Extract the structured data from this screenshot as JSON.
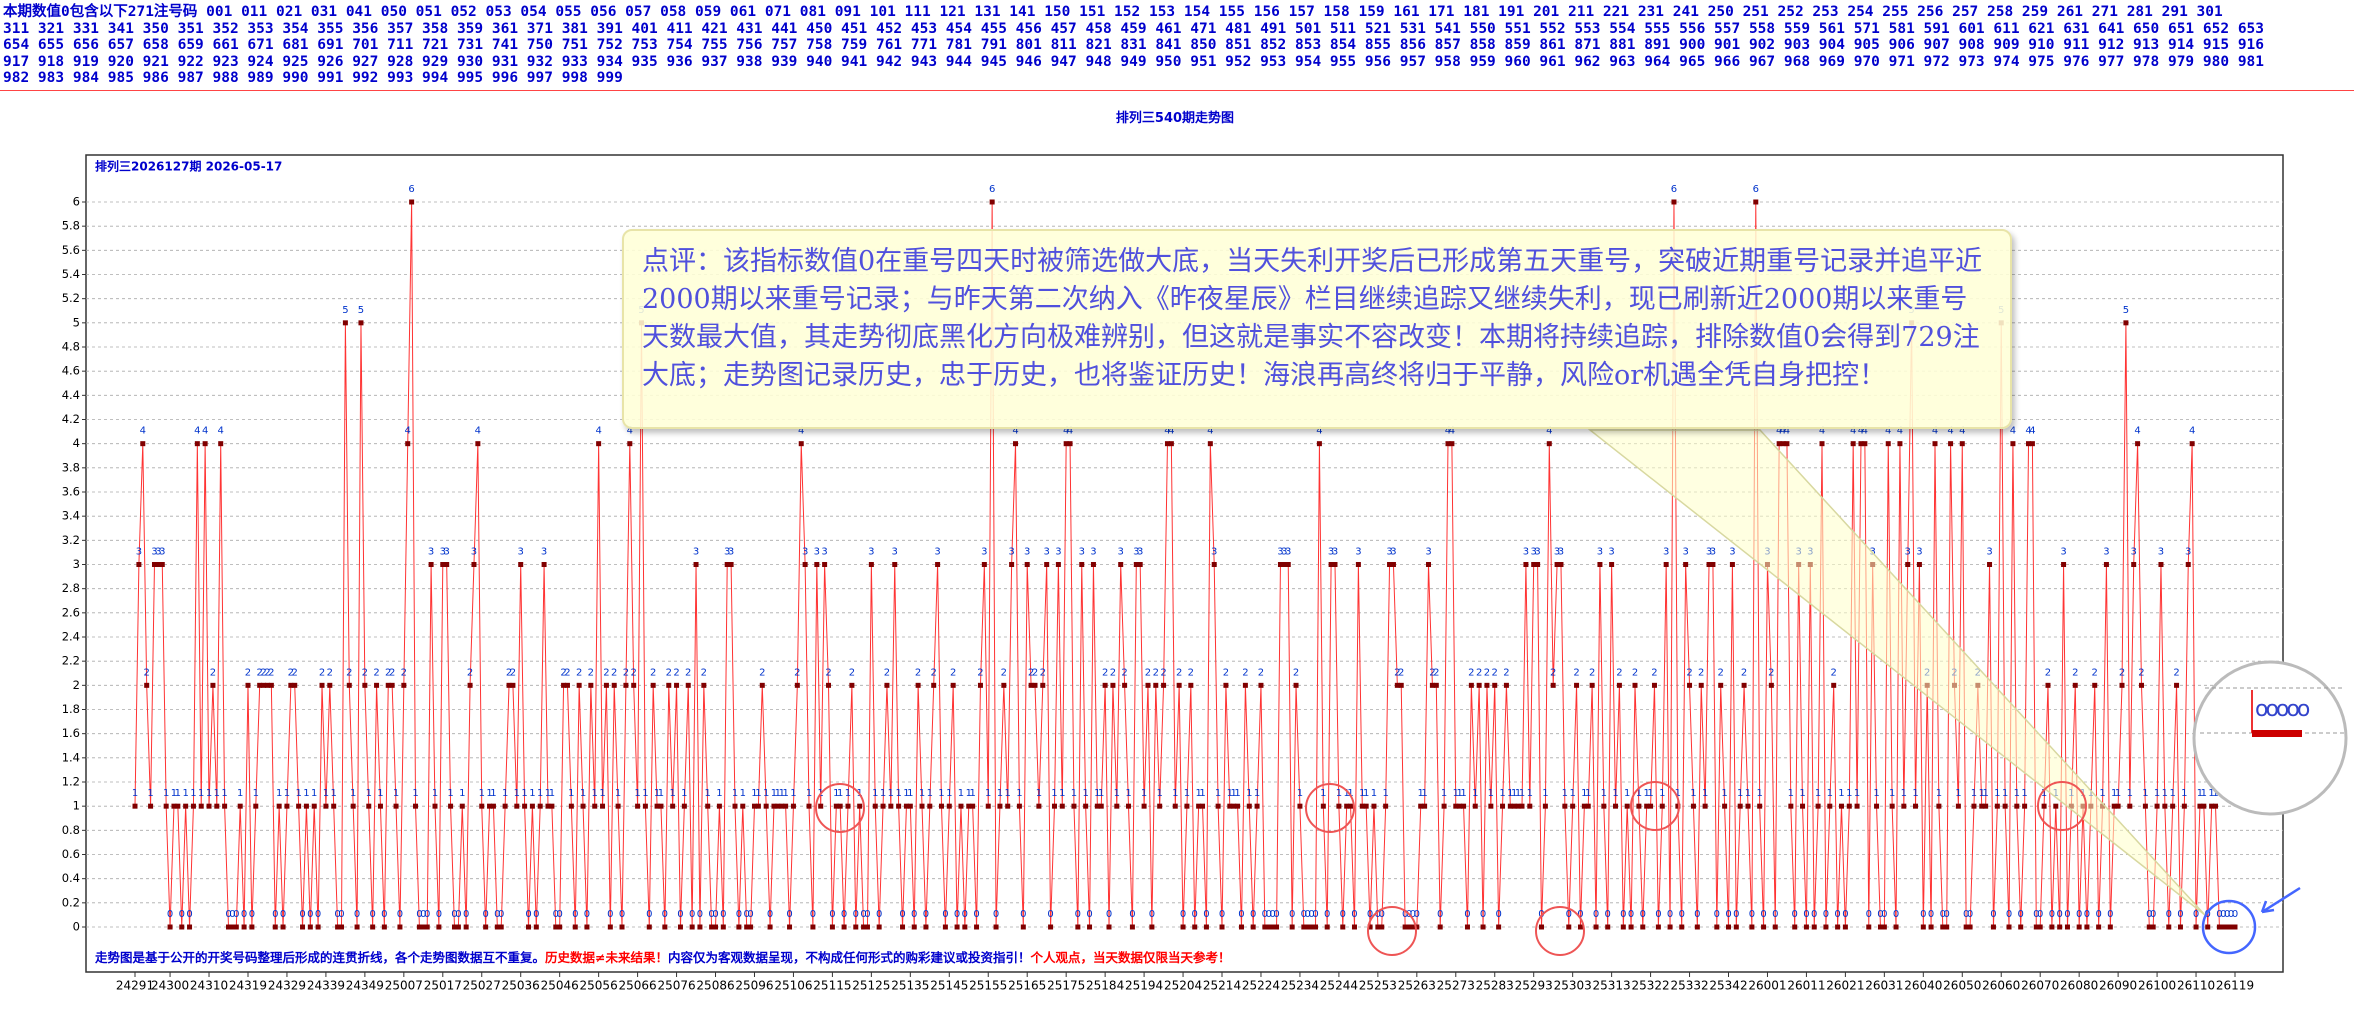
{
  "header": {
    "lines": [
      "本期数值0包含以下271注号码 001 011 021 031 041 050 051 052 053 054 055 056 057 058 059 061 071 081 091 101 111 121 131 141 150 151 152 153 154 155 156 157 158 159 161 171 181 191 201 211 221 231 241 250 251 252 253 254 255 256 257 258 259 261 271 281 291 301",
      "311 321 331 341 350 351 352 353 354 355 356 357 358 359 361 371 381 391 401 411 421 431 441 450 451 452 453 454 455 456 457 458 459 461 471 481 491 501 511 521 531 541 550 551 552 553 554 555 556 557 558 559 561 571 581 591 601 611 621 631 641 650 651 652 653",
      "654 655 656 657 658 659 661 671 681 691 701 711 721 731 741 750 751 752 753 754 755 756 757 758 759 761 771 781 791 801 811 821 831 841 850 851 852 853 854 855 856 857 858 859 861 871 881 891 900 901 902 903 904 905 906 907 908 909 910 911 912 913 914 915 916",
      "917 918 919 920 921 922 923 924 925 926 927 928 929 930 931 932 933 934 935 936 937 938 939 940 941 942 943 944 945 946 947 948 949 950 951 952 953 954 955 956 957 958 959 960 961 962 963 964 965 966 967 968 969 970 971 972 973 974 975 976 977 978 979 980 981",
      "982 983 984 985 986 987 988 989 990 991 992 993 994 995 996 997 998 999"
    ]
  },
  "chart_data": {
    "type": "line",
    "title": "排列三540期走势图",
    "subtitle": "排列三2026127期  2026-05-17",
    "annotation": "点评：该指标数值0在重号四天时被筛选做大底，当天失利开奖后已形成第五天重号，突破近期重号记录并追平近2000期以来重号记录；与昨天第二次纳入《昨夜星辰》栏目继续追踪又继续失利，现已刷新近2000期以来重号天数最大值，其走势彻底黑化方向极难辨别，但这就是事实不容改变！本期将持续追踪，排除数值0会得到729注大底；走势图记录历史，忠于历史，也将鉴证历史！海浪再高终将归于平静，风险or机遇全凭自身把控！",
    "notes": [
      {
        "text": "走势图是基于公开的开奖号码整理后形成的连贯折线，各个走势图数据互不重复。",
        "color": "#0000cc"
      },
      {
        "text": "历史数据≠未来结果！",
        "color": "#ff0000"
      },
      {
        "text": "内容仅为客观数据呈现，不构成任何形式的购彩建议或投资指引！",
        "color": "#0000cc"
      },
      {
        "text": "个人观点，当天数据仅限当天参考！",
        "color": "#ff0000"
      }
    ],
    "ylim": [
      0,
      6
    ],
    "yticks": [
      0,
      0.2,
      0.4,
      0.6,
      0.8,
      1,
      1.2,
      1.4,
      1.6,
      1.8,
      2,
      2.2,
      2.4,
      2.6,
      2.8,
      3,
      3.2,
      3.4,
      3.6,
      3.8,
      4,
      4.2,
      4.4,
      4.6,
      4.8,
      5,
      5.2,
      5.4,
      5.6,
      5.8,
      6
    ],
    "grid": true,
    "series": [
      {
        "name": "数值",
        "color": "#ff3333",
        "marker_color": "#800000",
        "label_color": "#0033cc",
        "values": [
          1,
          3,
          4,
          2,
          1,
          3,
          3,
          3,
          1,
          0,
          1,
          1,
          0,
          1,
          0,
          1,
          4,
          1,
          4,
          1,
          2,
          1,
          4,
          1,
          0,
          0,
          0,
          1,
          0,
          2,
          0,
          1,
          2,
          2,
          2,
          2,
          0,
          1,
          0,
          1,
          2,
          2,
          1,
          0,
          1,
          0,
          1,
          0,
          2,
          1,
          2,
          1,
          0,
          0,
          5,
          2,
          1,
          0,
          5,
          2,
          1,
          0,
          2,
          1,
          0,
          2,
          2,
          1,
          0,
          2,
          4,
          6,
          1,
          0,
          0,
          0,
          3,
          1,
          0,
          3,
          3,
          1,
          0,
          0,
          1,
          0,
          2,
          3,
          4,
          1,
          0,
          1,
          1,
          0,
          0,
          1,
          2,
          2,
          1,
          3,
          1,
          0,
          1,
          0,
          1,
          3,
          1,
          1,
          0,
          0,
          2,
          2,
          1,
          0,
          2,
          1,
          0,
          2,
          1,
          4,
          1,
          2,
          0,
          2,
          1,
          0,
          2,
          4,
          2,
          1,
          5,
          1,
          0,
          2,
          1,
          1,
          0,
          2,
          1,
          2,
          0,
          1,
          2,
          0,
          3,
          0,
          2,
          1,
          0,
          0,
          1,
          0,
          3,
          3,
          1,
          0,
          1,
          0,
          0,
          1,
          1,
          2,
          1,
          0,
          1,
          1,
          1,
          1,
          0,
          1,
          2,
          4,
          3,
          1,
          0,
          3,
          1,
          3,
          2,
          0,
          1,
          1,
          0,
          1,
          2,
          0,
          1,
          0,
          0,
          3,
          1,
          0,
          1,
          2,
          1,
          3,
          1,
          0,
          1,
          1,
          0,
          2,
          1,
          0,
          1,
          2,
          3,
          1,
          0,
          1,
          2,
          0,
          1,
          0,
          1,
          1,
          0,
          2,
          3,
          1,
          6,
          0,
          1,
          2,
          1,
          3,
          4,
          1,
          0,
          3,
          2,
          2,
          1,
          2,
          3,
          0,
          1,
          3,
          1,
          4,
          4,
          1,
          0,
          3,
          1,
          0,
          3,
          1,
          1,
          2,
          0,
          2,
          1,
          3,
          2,
          1,
          0,
          3,
          3,
          1,
          2,
          0,
          2,
          1,
          2,
          4,
          4,
          1,
          2,
          0,
          1,
          2,
          0,
          1,
          1,
          0,
          4,
          3,
          1,
          0,
          2,
          1,
          1,
          1,
          0,
          2,
          1,
          0,
          1,
          2,
          0,
          0,
          0,
          0,
          3,
          3,
          3,
          0,
          2,
          1,
          0,
          0,
          0,
          0,
          4,
          1,
          0,
          3,
          3,
          1,
          0,
          1,
          1,
          0,
          3,
          1,
          1,
          0,
          1,
          0,
          0,
          1,
          3,
          3,
          2,
          2,
          0,
          0,
          0,
          0,
          1,
          1,
          3,
          2,
          2,
          0,
          1,
          4,
          4,
          1,
          1,
          1,
          0,
          2,
          1,
          2,
          0,
          2,
          1,
          2,
          0,
          1,
          2,
          1,
          1,
          1,
          1,
          3,
          1,
          3,
          3,
          0,
          1,
          4,
          2,
          3,
          3,
          1,
          0,
          1,
          2,
          0,
          1,
          1,
          2,
          0,
          3,
          1,
          0,
          3,
          1,
          2,
          0,
          1,
          0,
          2,
          1,
          0,
          1,
          1,
          2,
          0,
          1,
          3,
          0,
          6,
          1,
          0,
          3,
          2,
          1,
          0,
          2,
          1,
          3,
          3,
          0,
          2,
          1,
          0,
          3,
          0,
          1,
          2,
          1,
          0,
          6,
          1,
          0,
          3,
          2,
          0,
          4,
          4,
          4,
          1,
          0,
          3,
          1,
          0,
          3,
          0,
          1,
          4,
          0,
          1,
          2,
          0,
          1,
          0,
          1,
          4,
          1,
          4,
          4,
          0,
          3,
          1,
          0,
          0,
          4,
          1,
          0,
          4,
          1,
          3,
          5,
          1,
          3,
          0,
          2,
          0,
          4,
          1,
          0,
          0,
          4,
          2,
          1,
          4,
          0,
          0,
          1,
          2,
          1,
          1,
          3,
          0,
          1,
          5,
          1,
          0,
          4,
          1,
          0,
          1,
          4,
          4,
          0,
          0,
          1,
          2,
          0,
          1,
          0,
          3,
          0,
          1,
          2,
          0,
          1,
          0,
          1,
          2,
          0,
          1,
          3,
          0,
          1,
          1,
          2,
          5,
          1,
          3,
          4,
          2,
          1,
          0,
          0,
          1,
          3,
          1,
          0,
          1,
          2,
          0,
          1,
          3,
          4,
          0,
          1,
          1,
          0,
          1,
          1,
          0,
          0,
          0,
          0,
          0
        ]
      }
    ],
    "categories": [
      "24291",
      null,
      null,
      null,
      null,
      null,
      null,
      null,
      null,
      "24300",
      null,
      null,
      null,
      null,
      null,
      null,
      null,
      null,
      null,
      "24310",
      null,
      null,
      null,
      null,
      null,
      null,
      null,
      null,
      null,
      "24319",
      null,
      null,
      null,
      null,
      null,
      null,
      null,
      null,
      null,
      "24329",
      null,
      null,
      null,
      null,
      null,
      null,
      null,
      null,
      null,
      "24339",
      null,
      null,
      null,
      null,
      null,
      null,
      null,
      null,
      null,
      "24349",
      null,
      null,
      null,
      null,
      null,
      null,
      null,
      null,
      null,
      "25007",
      null,
      null,
      null,
      null,
      null,
      null,
      null,
      null,
      null,
      "25017",
      null,
      null,
      null,
      null,
      null,
      null,
      null,
      null,
      null,
      "25027",
      null,
      null,
      null,
      null,
      null,
      null,
      null,
      null,
      null,
      "25036",
      null,
      null,
      null,
      null,
      null,
      null,
      null,
      null,
      null,
      "25046",
      null,
      null,
      null,
      null,
      null,
      null,
      null,
      null,
      null,
      "25056",
      null,
      null,
      null,
      null,
      null,
      null,
      null,
      null,
      null,
      "25066",
      null,
      null,
      null,
      null,
      null,
      null,
      null,
      null,
      null,
      "25076",
      null,
      null,
      null,
      null,
      null,
      null,
      null,
      null,
      null,
      "25086",
      null,
      null,
      null,
      null,
      null,
      null,
      null,
      null,
      null,
      "25096",
      null,
      null,
      null,
      null,
      null,
      null,
      null,
      null,
      null,
      "25106",
      null,
      null,
      null,
      null,
      null,
      null,
      null,
      null,
      null,
      "25115",
      null,
      null,
      null,
      null,
      null,
      null,
      null,
      null,
      null,
      "25125",
      null,
      null,
      null,
      null,
      null,
      null,
      null,
      null,
      null,
      "25135",
      null,
      null,
      null,
      null,
      null,
      null,
      null,
      null,
      null,
      "25145",
      null,
      null,
      null,
      null,
      null,
      null,
      null,
      null,
      null,
      "25155",
      null,
      null,
      null,
      null,
      null,
      null,
      null,
      null,
      null,
      "25165",
      null,
      null,
      null,
      null,
      null,
      null,
      null,
      null,
      null,
      "25175",
      null,
      null,
      null,
      null,
      null,
      null,
      null,
      null,
      null,
      "25184",
      null,
      null,
      null,
      null,
      null,
      null,
      null,
      null,
      null,
      "25194",
      null,
      null,
      null,
      null,
      null,
      null,
      null,
      null,
      null,
      "25204",
      null,
      null,
      null,
      null,
      null,
      null,
      null,
      null,
      null,
      "25214",
      null,
      null,
      null,
      null,
      null,
      null,
      null,
      null,
      null,
      "25224",
      null,
      null,
      null,
      null,
      null,
      null,
      null,
      null,
      null,
      "25234",
      null,
      null,
      null,
      null,
      null,
      null,
      null,
      null,
      null,
      "25244",
      null,
      null,
      null,
      null,
      null,
      null,
      null,
      null,
      null,
      "25253",
      null,
      null,
      null,
      null,
      null,
      null,
      null,
      null,
      null,
      "25263",
      null,
      null,
      null,
      null,
      null,
      null,
      null,
      null,
      null,
      "25273",
      null,
      null,
      null,
      null,
      null,
      null,
      null,
      null,
      null,
      "25283",
      null,
      null,
      null,
      null,
      null,
      null,
      null,
      null,
      null,
      "25293",
      null,
      null,
      null,
      null,
      null,
      null,
      null,
      null,
      null,
      "25303",
      null,
      null,
      null,
      null,
      null,
      null,
      null,
      null,
      null,
      "25313",
      null,
      null,
      null,
      null,
      null,
      null,
      null,
      null,
      null,
      "25322",
      null,
      null,
      null,
      null,
      null,
      null,
      null,
      null,
      null,
      "25332",
      null,
      null,
      null,
      null,
      null,
      null,
      null,
      null,
      null,
      "25342",
      null,
      null,
      null,
      null,
      null,
      null,
      null,
      null,
      null,
      "26001",
      null,
      null,
      null,
      null,
      null,
      null,
      null,
      null,
      null,
      "26011",
      null,
      null,
      null,
      null,
      null,
      null,
      null,
      null,
      null,
      "26021",
      null,
      null,
      null,
      null,
      null,
      null,
      null,
      null,
      null,
      "26031",
      null,
      null,
      null,
      null,
      null,
      null,
      null,
      null,
      null,
      "26040",
      null,
      null,
      null,
      null,
      null,
      null,
      null,
      null,
      null,
      "26050",
      null,
      null,
      null,
      null,
      null,
      null,
      null,
      null,
      null,
      "26060",
      null,
      null,
      null,
      null,
      null,
      null,
      null,
      null,
      null,
      "26070",
      null,
      null,
      null,
      null,
      null,
      null,
      null,
      null,
      null,
      "26080",
      null,
      null,
      null,
      null,
      null,
      null,
      null,
      null,
      null,
      "26090",
      null,
      null,
      null,
      null,
      null,
      null,
      null,
      null,
      null,
      "26100",
      null,
      null,
      null,
      null,
      null,
      null,
      null,
      null,
      null,
      "26110",
      null,
      null,
      null,
      null,
      null,
      null,
      null,
      null,
      null,
      "26119"
    ]
  }
}
